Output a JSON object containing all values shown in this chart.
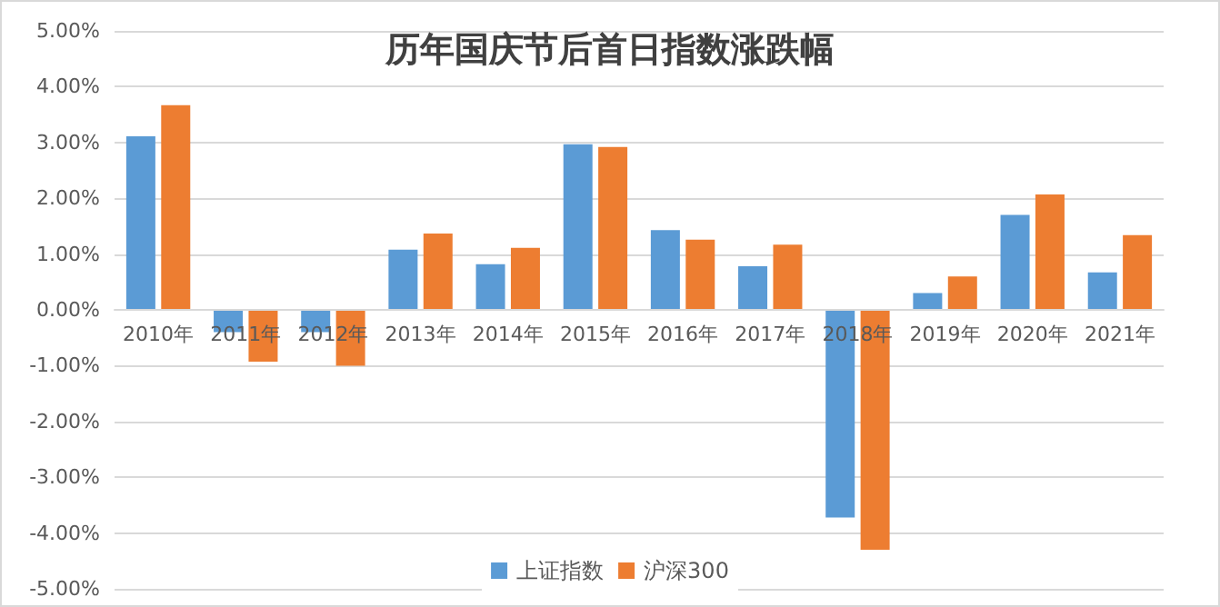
{
  "chart_data": {
    "type": "bar",
    "title": "历年国庆节后首日指数涨跌幅",
    "categories": [
      "2010年",
      "2011年",
      "2012年",
      "2013年",
      "2014年",
      "2015年",
      "2016年",
      "2017年",
      "2018年",
      "2019年",
      "2020年",
      "2021年"
    ],
    "series": [
      {
        "name": "上证指数",
        "color": "#5b9bd5",
        "values": [
          3.11,
          -0.4,
          -0.4,
          1.08,
          0.82,
          2.97,
          1.43,
          0.78,
          -3.72,
          0.3,
          1.7,
          0.67
        ]
      },
      {
        "name": "沪深300",
        "color": "#ed7d31",
        "values": [
          3.67,
          -0.93,
          -1.0,
          1.37,
          1.11,
          2.92,
          1.26,
          1.17,
          -4.3,
          0.6,
          2.07,
          1.34
        ]
      }
    ],
    "ylim": [
      -5,
      5
    ],
    "yticks": [
      {
        "value": -5,
        "label": "-5.00%"
      },
      {
        "value": -4,
        "label": "-4.00%"
      },
      {
        "value": -3,
        "label": "-3.00%"
      },
      {
        "value": -2,
        "label": "-2.00%"
      },
      {
        "value": -1,
        "label": "-1.00%"
      },
      {
        "value": 0,
        "label": "0.00%"
      },
      {
        "value": 1,
        "label": "1.00%"
      },
      {
        "value": 2,
        "label": "2.00%"
      },
      {
        "value": 3,
        "label": "3.00%"
      },
      {
        "value": 4,
        "label": "4.00%"
      },
      {
        "value": 5,
        "label": "5.00%"
      }
    ],
    "grid": "y",
    "legend": "bottom"
  }
}
